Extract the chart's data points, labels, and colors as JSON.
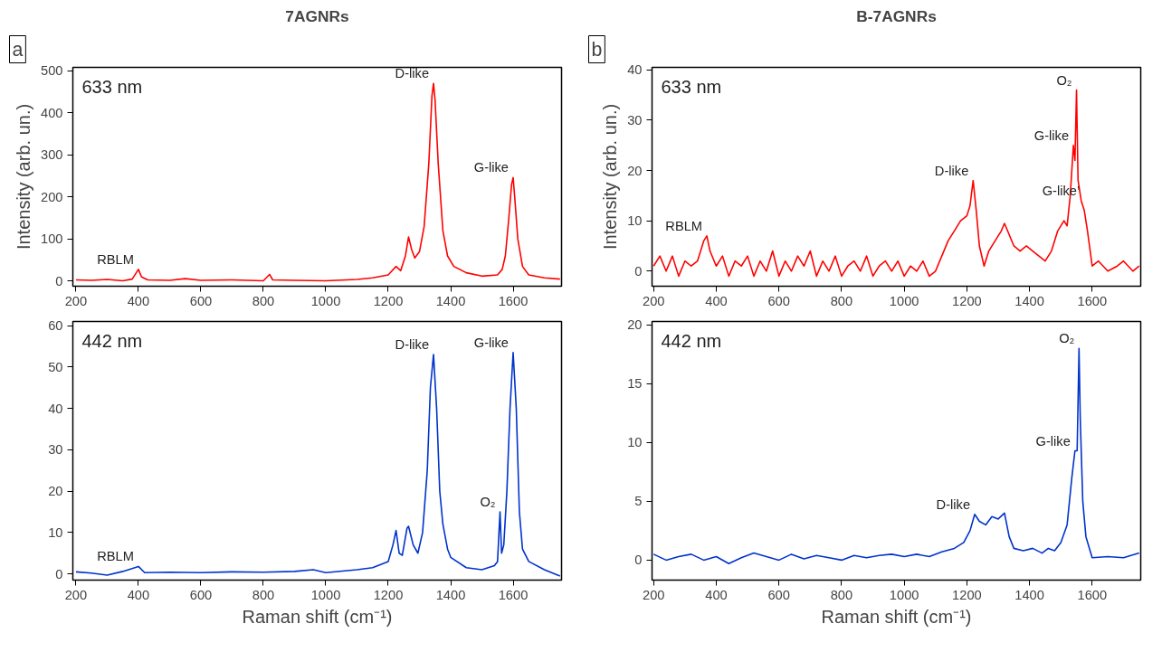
{
  "chart_data": [
    {
      "type": "line",
      "title": "7AGNRs",
      "ylabel": "Intensity (arb. un.)",
      "xlim": [
        190,
        1755
      ],
      "xticks": [
        200,
        400,
        600,
        800,
        1000,
        1200,
        1400,
        1600
      ],
      "ylim": [
        -12,
        508
      ],
      "yticks": [
        0,
        100,
        200,
        300,
        400,
        500
      ],
      "grid": false,
      "annotations": [
        "a",
        "633 nm",
        {
          "text": "RBLM",
          "x": 400,
          "y": 28
        },
        {
          "text": "D-like",
          "x": 1345,
          "y": 470
        },
        {
          "text": "G-like",
          "x": 1600,
          "y": 246
        }
      ],
      "series": [
        {
          "color": "#ff0000",
          "x": [
            200,
            250,
            300,
            350,
            380,
            400,
            410,
            430,
            500,
            550,
            600,
            700,
            800,
            820,
            830,
            900,
            1000,
            1100,
            1150,
            1200,
            1225,
            1240,
            1255,
            1265,
            1275,
            1285,
            1300,
            1315,
            1330,
            1340,
            1345,
            1350,
            1360,
            1375,
            1390,
            1410,
            1450,
            1500,
            1550,
            1565,
            1575,
            1585,
            1595,
            1600,
            1605,
            1615,
            1630,
            1650,
            1700,
            1750
          ],
          "values": [
            3,
            2,
            4,
            1,
            5,
            28,
            10,
            3,
            2,
            6,
            2,
            3,
            1,
            16,
            3,
            2,
            1,
            4,
            8,
            15,
            35,
            25,
            60,
            105,
            75,
            55,
            70,
            130,
            280,
            440,
            470,
            430,
            280,
            120,
            60,
            35,
            20,
            12,
            15,
            28,
            60,
            140,
            230,
            246,
            200,
            100,
            35,
            15,
            8,
            5
          ]
        }
      ]
    },
    {
      "type": "line",
      "title": "B-7AGNRs",
      "ylabel": "Intensity (arb. un.)",
      "xlim": [
        195,
        1755
      ],
      "xticks": [
        200,
        400,
        600,
        800,
        1000,
        1200,
        1400,
        1600
      ],
      "ylim": [
        -3,
        40.5
      ],
      "yticks": [
        0,
        10,
        20,
        30,
        40
      ],
      "grid": false,
      "annotations": [
        "b",
        "633 nm",
        {
          "text": "RBLM",
          "x": 370,
          "y": 7
        },
        {
          "text": "D-like",
          "x": 1220,
          "y": 18
        },
        {
          "text": "G-like",
          "x": 1540,
          "y": 25
        },
        {
          "text": "O₂",
          "x": 1550,
          "y": 36
        },
        {
          "text": "G-like’",
          "x": 1575,
          "y": 14
        }
      ],
      "series": [
        {
          "color": "#ff0000",
          "x": [
            200,
            220,
            240,
            260,
            280,
            300,
            320,
            340,
            360,
            370,
            380,
            400,
            420,
            440,
            460,
            480,
            500,
            520,
            540,
            560,
            580,
            600,
            620,
            640,
            660,
            680,
            700,
            720,
            740,
            760,
            780,
            800,
            820,
            840,
            860,
            880,
            900,
            920,
            940,
            960,
            980,
            1000,
            1020,
            1040,
            1060,
            1080,
            1100,
            1120,
            1140,
            1160,
            1180,
            1200,
            1210,
            1220,
            1230,
            1240,
            1255,
            1270,
            1290,
            1310,
            1320,
            1330,
            1350,
            1370,
            1390,
            1410,
            1430,
            1450,
            1470,
            1490,
            1510,
            1520,
            1530,
            1540,
            1545,
            1550,
            1555,
            1565,
            1575,
            1585,
            1600,
            1620,
            1650,
            1680,
            1700,
            1730,
            1750
          ],
          "values": [
            1,
            3,
            0,
            3,
            -1,
            2,
            1,
            2,
            6,
            7,
            4,
            1,
            3,
            -1,
            2,
            1,
            3,
            -1,
            2,
            0,
            4,
            -1,
            2,
            0,
            3,
            1,
            4,
            -1,
            2,
            0,
            3,
            -1,
            1,
            2,
            0,
            3,
            -1,
            1,
            2,
            0,
            2,
            -1,
            1,
            0,
            2,
            -1,
            0,
            3,
            6,
            8,
            10,
            11,
            13,
            18,
            12,
            5,
            1,
            4,
            6,
            8,
            9.5,
            8,
            5,
            4,
            5,
            4,
            3,
            2,
            4,
            8,
            10,
            9,
            15,
            25,
            22,
            36,
            18,
            14,
            12,
            8,
            1,
            2,
            0,
            1,
            2,
            0,
            1
          ]
        }
      ]
    },
    {
      "type": "line",
      "xlabel": "Raman shift (cm⁻¹)",
      "xlim": [
        190,
        1755
      ],
      "xticks": [
        200,
        400,
        600,
        800,
        1000,
        1200,
        1400,
        1600
      ],
      "ylim": [
        -1.5,
        61
      ],
      "yticks": [
        0,
        10,
        20,
        30,
        40,
        50,
        60
      ],
      "grid": false,
      "annotations": [
        "442 nm",
        {
          "text": "RBLM",
          "x": 400,
          "y": 1.8
        },
        {
          "text": "D-like",
          "x": 1345,
          "y": 53
        },
        {
          "text": "O₂",
          "x": 1558,
          "y": 15
        },
        {
          "text": "G-like",
          "x": 1600,
          "y": 53.5
        }
      ],
      "series": [
        {
          "color": "#0033cc",
          "x": [
            200,
            250,
            300,
            350,
            400,
            420,
            500,
            600,
            700,
            800,
            900,
            960,
            1000,
            1100,
            1150,
            1200,
            1215,
            1225,
            1235,
            1245,
            1260,
            1265,
            1280,
            1295,
            1310,
            1325,
            1335,
            1345,
            1355,
            1365,
            1375,
            1390,
            1400,
            1450,
            1500,
            1540,
            1550,
            1558,
            1563,
            1570,
            1580,
            1590,
            1600,
            1610,
            1620,
            1630,
            1650,
            1700,
            1750
          ],
          "values": [
            0.5,
            0.2,
            -0.3,
            0.6,
            1.8,
            0.3,
            0.4,
            0.3,
            0.5,
            0.4,
            0.6,
            1.0,
            0.3,
            1.0,
            1.5,
            3,
            7,
            10.5,
            5,
            4.5,
            11,
            11.5,
            7,
            5,
            10,
            25,
            45,
            53,
            40,
            20,
            12,
            6,
            4,
            1.5,
            1,
            2,
            3,
            15,
            5,
            7,
            20,
            40,
            53.5,
            40,
            15,
            6,
            3,
            1,
            -0.5
          ]
        }
      ]
    },
    {
      "type": "line",
      "xlabel": "Raman shift (cm⁻¹)",
      "xlim": [
        195,
        1755
      ],
      "xticks": [
        200,
        400,
        600,
        800,
        1000,
        1200,
        1400,
        1600
      ],
      "ylim": [
        -1.7,
        20.3
      ],
      "yticks": [
        0,
        5,
        10,
        15,
        20
      ],
      "grid": false,
      "annotations": [
        "442 nm",
        {
          "text": "D-like",
          "x": 1225,
          "y": 3.9
        },
        {
          "text": "G-like",
          "x": 1545,
          "y": 9.3
        },
        {
          "text": "O₂",
          "x": 1558,
          "y": 18
        }
      ],
      "series": [
        {
          "color": "#0033cc",
          "x": [
            200,
            240,
            280,
            320,
            360,
            400,
            440,
            480,
            520,
            560,
            600,
            640,
            680,
            720,
            760,
            800,
            840,
            880,
            920,
            960,
            1000,
            1040,
            1080,
            1120,
            1160,
            1190,
            1210,
            1225,
            1240,
            1260,
            1280,
            1300,
            1320,
            1335,
            1350,
            1380,
            1410,
            1440,
            1460,
            1480,
            1500,
            1520,
            1535,
            1545,
            1552,
            1558,
            1562,
            1570,
            1580,
            1600,
            1650,
            1700,
            1750
          ],
          "values": [
            0.5,
            0,
            0.3,
            0.5,
            0,
            0.3,
            -0.3,
            0.2,
            0.6,
            0.3,
            0,
            0.5,
            0.1,
            0.4,
            0.2,
            0,
            0.4,
            0.2,
            0.4,
            0.5,
            0.3,
            0.5,
            0.3,
            0.7,
            1.0,
            1.5,
            2.5,
            3.9,
            3.3,
            3,
            3.7,
            3.5,
            4,
            2,
            1,
            0.8,
            1.0,
            0.6,
            1,
            0.8,
            1.5,
            3,
            7,
            9.3,
            9.3,
            18,
            12,
            5,
            2,
            0.2,
            0.3,
            0.2,
            0.6
          ]
        }
      ]
    }
  ]
}
